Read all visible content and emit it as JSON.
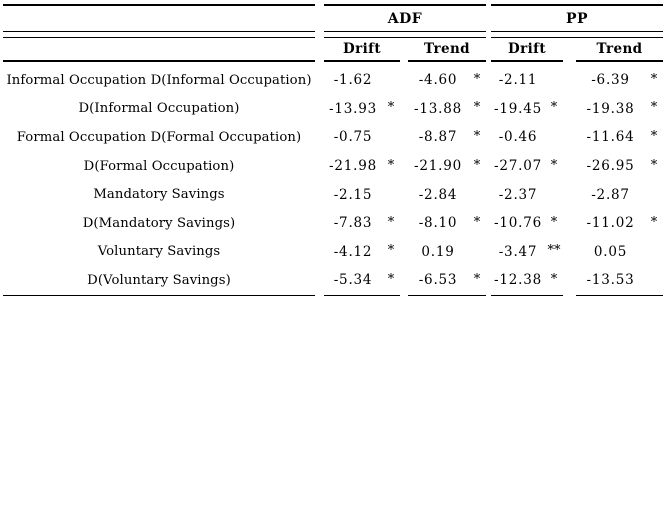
{
  "colors": {
    "background": "#ffffff",
    "text": "#000000",
    "rule": "#000000"
  },
  "table": {
    "groups": [
      {
        "label": "ADF"
      },
      {
        "label": "PP"
      }
    ],
    "subheaders": [
      "Drift",
      "Trend",
      "Drift",
      "Trend"
    ],
    "rows": [
      {
        "label": "Informal Occupation D(Informal Occupation)",
        "cells": [
          {
            "v": "-1.62",
            "sig": ""
          },
          {
            "v": "-4.60",
            "sig": "*"
          },
          {
            "v": "-2.11",
            "sig": ""
          },
          {
            "v": "-6.39",
            "sig": "*"
          }
        ]
      },
      {
        "label": "D(Informal Occupation)",
        "cells": [
          {
            "v": "-13.93",
            "sig": "*"
          },
          {
            "v": "-13.88",
            "sig": "*"
          },
          {
            "v": "-19.45",
            "sig": "*"
          },
          {
            "v": "-19.38",
            "sig": "*"
          }
        ]
      },
      {
        "label": "Formal Occupation D(Formal Occupation)",
        "cells": [
          {
            "v": "-0.75",
            "sig": ""
          },
          {
            "v": "-8.87",
            "sig": "*"
          },
          {
            "v": "-0.46",
            "sig": ""
          },
          {
            "v": "-11.64",
            "sig": "*"
          }
        ]
      },
      {
        "label": "D(Formal Occupation)",
        "cells": [
          {
            "v": "-21.98",
            "sig": "*"
          },
          {
            "v": "-21.90",
            "sig": "*"
          },
          {
            "v": "-27.07",
            "sig": "*"
          },
          {
            "v": "-26.95",
            "sig": "*"
          }
        ]
      },
      {
        "label": "Mandatory Savings",
        "cells": [
          {
            "v": "-2.15",
            "sig": ""
          },
          {
            "v": "-2.84",
            "sig": ""
          },
          {
            "v": "-2.37",
            "sig": ""
          },
          {
            "v": "-2.87",
            "sig": ""
          }
        ]
      },
      {
        "label": "D(Mandatory Savings)",
        "cells": [
          {
            "v": "-7.83",
            "sig": "*"
          },
          {
            "v": "-8.10",
            "sig": "*"
          },
          {
            "v": "-10.76",
            "sig": "*"
          },
          {
            "v": "-11.02",
            "sig": "*"
          }
        ]
      },
      {
        "label": "Voluntary Savings",
        "cells": [
          {
            "v": "-4.12",
            "sig": "*"
          },
          {
            "v": "0.19",
            "sig": ""
          },
          {
            "v": "-3.47",
            "sig": "**"
          },
          {
            "v": "0.05",
            "sig": ""
          }
        ]
      },
      {
        "label": "D(Voluntary Savings)",
        "cells": [
          {
            "v": "-5.34",
            "sig": "*"
          },
          {
            "v": "-6.53",
            "sig": "*"
          },
          {
            "v": "-12.38",
            "sig": "*"
          },
          {
            "v": "-13.53",
            "sig": ""
          }
        ]
      }
    ]
  }
}
